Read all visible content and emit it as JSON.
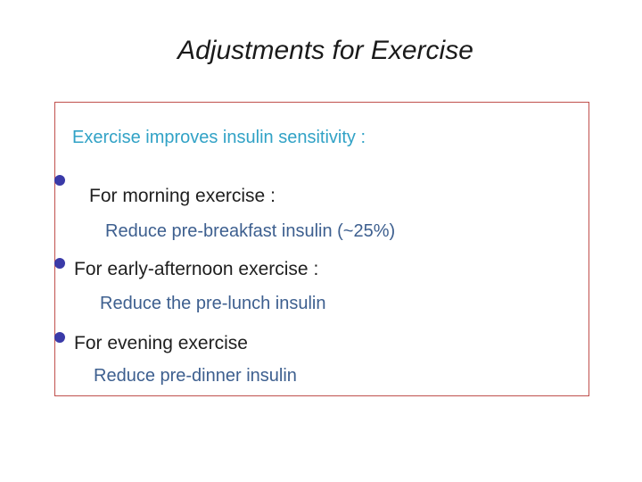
{
  "slide": {
    "title": "Adjustments for Exercise",
    "intro": "Exercise improves insulin sensitivity :",
    "items": [
      {
        "heading": "For morning exercise :",
        "detail": "Reduce pre-breakfast insulin   (~25%)"
      },
      {
        "heading": "For early-afternoon exercise :",
        "detail": "Reduce the pre-lunch insulin"
      },
      {
        "heading": "For evening exercise",
        "detail": "Reduce pre-dinner insulin"
      }
    ]
  },
  "colors": {
    "box_border": "#c0504d",
    "intro_text": "#31a2c6",
    "bullet": "#3a3aa8",
    "detail_text": "#3d5f8f"
  }
}
